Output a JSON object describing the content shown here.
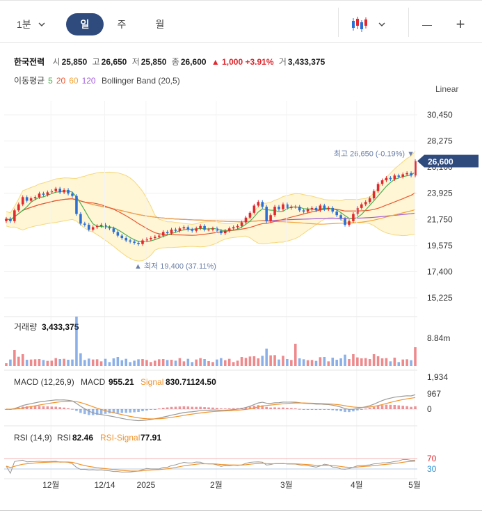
{
  "toolbar": {
    "period_select": "1분",
    "tabs": [
      {
        "label": "일",
        "active": true
      },
      {
        "label": "주",
        "active": false
      },
      {
        "label": "월",
        "active": false
      }
    ],
    "chart_type_icon": "candlestick-icon",
    "zoom_out": "—",
    "zoom_in": "+"
  },
  "quote": {
    "name": "한국전력",
    "open_label": "시",
    "open": "25,850",
    "high_label": "고",
    "high": "26,650",
    "low_label": "저",
    "low": "25,850",
    "close_label": "종",
    "close": "26,600",
    "change": "▲ 1,000 +3.91%",
    "volume_label": "거",
    "volume": "3,433,375"
  },
  "indicators": {
    "ma_label": "이동평균",
    "ma5": "5",
    "ma20": "20",
    "ma60": "60",
    "ma120": "120",
    "bb_label": "Bollinger Band (20,5)"
  },
  "scale_mode": "Linear",
  "colors": {
    "up": "#e0282e",
    "down": "#2b6fd6",
    "ma5": "#4caf50",
    "ma20": "#e9572f",
    "ma60": "#f2a33a",
    "ma120": "#a25ad9",
    "bb_fill": "#fff6d6",
    "bb_line": "#f5d77a",
    "macd": "#999999",
    "signal": "#f0932b",
    "current_price_bg": "#2f4a7d"
  },
  "chart_data": [
    {
      "type": "candlestick",
      "ylim": [
        15225,
        30450
      ],
      "y_ticks": [
        "30,450",
        "28,275",
        "26,100",
        "23,925",
        "21,750",
        "19,575",
        "17,400",
        "15,225"
      ],
      "x_ticks": [
        "12월",
        "12/14",
        "2025",
        "2월",
        "3월",
        "4월",
        "5월"
      ],
      "closes": [
        21800,
        21600,
        22500,
        23000,
        23600,
        23300,
        23500,
        23600,
        23900,
        23800,
        24000,
        24100,
        24300,
        24000,
        24200,
        23900,
        23700,
        22200,
        21400,
        21300,
        20900,
        21100,
        21200,
        21300,
        21100,
        21000,
        20700,
        20400,
        20200,
        20000,
        19900,
        19800,
        19700,
        20000,
        20100,
        20200,
        20300,
        20400,
        20700,
        20600,
        20900,
        20800,
        21000,
        21100,
        20900,
        20800,
        21000,
        21200,
        20900,
        20900,
        21000,
        20800,
        20600,
        20800,
        21000,
        21100,
        21200,
        21500,
        21900,
        22300,
        22900,
        23200,
        22800,
        21600,
        22100,
        22800,
        22600,
        23000,
        22700,
        22800,
        22800,
        22500,
        22400,
        22600,
        22700,
        22500,
        22900,
        22600,
        22700,
        22400,
        22100,
        21800,
        21300,
        21600,
        22200,
        22700,
        23000,
        23200,
        23500,
        24100,
        24700,
        25000,
        25200,
        25100,
        25400,
        25300,
        25500,
        25600,
        25400,
        26600
      ],
      "ma_note": "MA5/MA20/MA60/MA120 drawn from closes",
      "max_label": "최고 26,650 (-0.19%)",
      "min_label": "최저 19,400 (37.11%)",
      "current_price": "26,600"
    },
    {
      "type": "bar",
      "label": "거래량",
      "value": "3,433,375",
      "y_tick": "8.84m",
      "y_tick_value": 8840000
    },
    {
      "type": "line",
      "label": "MACD (12,26,9)",
      "macd_label": "MACD",
      "macd_value": "955.21",
      "signal_label": "Signal",
      "signal_value": "830.71124.50",
      "y_ticks": [
        "1,934",
        "967",
        "0"
      ]
    },
    {
      "type": "line",
      "label": "RSI (14,9)",
      "rsi_label": "RSI",
      "rsi_value": "82.46",
      "rsi_signal_label": "RSI-Signal",
      "rsi_signal_value": "77.91",
      "y_ticks": [
        "70",
        "30"
      ]
    }
  ]
}
